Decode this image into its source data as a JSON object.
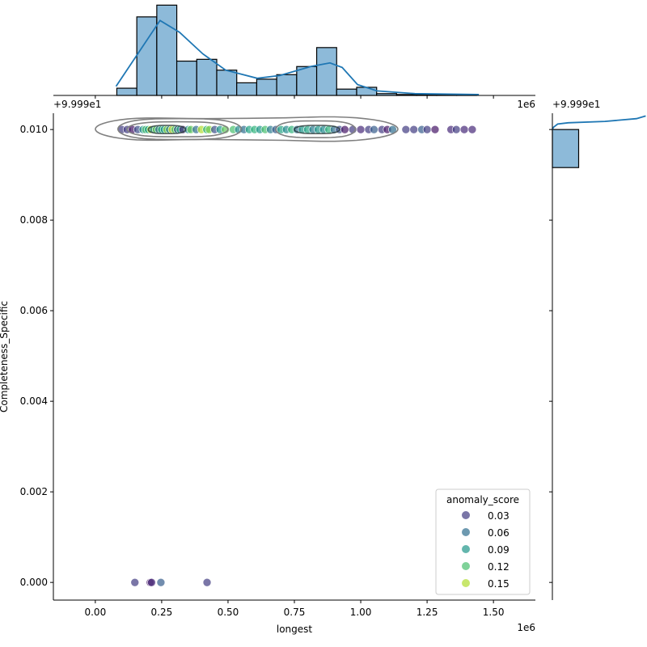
{
  "chart_data": {
    "type": "scatter",
    "subtype": "jointplot with marginal histograms and KDE contours",
    "xlabel": "longest",
    "ylabel": "Completeness_Specific",
    "x_offset_text": "1e6",
    "y_offset_text": "+9.999e1",
    "top_marginal_x_offset_text": "1e6",
    "top_marginal_y_offset_text": "+9.999e1",
    "right_marginal_offset_text": "+9.999e1",
    "xlim": [
      -0.158,
      1.658
    ],
    "ylim": [
      -0.00039,
      0.01036
    ],
    "x_ticks": [
      "0.00",
      "0.25",
      "0.50",
      "0.75",
      "1.00",
      "1.25",
      "1.50"
    ],
    "y_ticks": [
      "0.000",
      "0.002",
      "0.004",
      "0.006",
      "0.008",
      "0.010"
    ],
    "grid": false,
    "legend": {
      "title": "anomaly_score",
      "placement": "lower-right",
      "entries": [
        "0.03",
        "0.06",
        "0.09",
        "0.12",
        "0.15"
      ],
      "values": [
        0.03,
        0.06,
        0.09,
        0.12,
        0.15
      ]
    },
    "colormap": "viridis",
    "hue_range": [
      0.0,
      0.17
    ],
    "points": [
      [
        0.1,
        0.01,
        0.03
      ],
      [
        0.12,
        0.01,
        0.03
      ],
      [
        0.14,
        0.01,
        0.01
      ],
      [
        0.16,
        0.01,
        0.04
      ],
      [
        0.18,
        0.01,
        0.09
      ],
      [
        0.19,
        0.01,
        0.12
      ],
      [
        0.2,
        0.01,
        0.1
      ],
      [
        0.21,
        0.01,
        0.15
      ],
      [
        0.22,
        0.01,
        0.08
      ],
      [
        0.23,
        0.01,
        0.13
      ],
      [
        0.24,
        0.01,
        0.06
      ],
      [
        0.25,
        0.01,
        0.11
      ],
      [
        0.26,
        0.01,
        0.09
      ],
      [
        0.27,
        0.01,
        0.14
      ],
      [
        0.28,
        0.01,
        0.07
      ],
      [
        0.29,
        0.01,
        0.16
      ],
      [
        0.3,
        0.01,
        0.12
      ],
      [
        0.31,
        0.01,
        0.05
      ],
      [
        0.32,
        0.01,
        0.1
      ],
      [
        0.33,
        0.01,
        0.02
      ],
      [
        0.35,
        0.01,
        0.08
      ],
      [
        0.36,
        0.01,
        0.13
      ],
      [
        0.38,
        0.01,
        0.06
      ],
      [
        0.4,
        0.01,
        0.15
      ],
      [
        0.42,
        0.01,
        0.11
      ],
      [
        0.43,
        0.01,
        0.14
      ],
      [
        0.45,
        0.01,
        0.04
      ],
      [
        0.47,
        0.01,
        0.09
      ],
      [
        0.49,
        0.01,
        0.13
      ],
      [
        0.52,
        0.01,
        0.12
      ],
      [
        0.54,
        0.01,
        0.08
      ],
      [
        0.56,
        0.01,
        0.06
      ],
      [
        0.58,
        0.01,
        0.1
      ],
      [
        0.6,
        0.01,
        0.11
      ],
      [
        0.62,
        0.01,
        0.09
      ],
      [
        0.64,
        0.01,
        0.12
      ],
      [
        0.66,
        0.01,
        0.07
      ],
      [
        0.68,
        0.01,
        0.05
      ],
      [
        0.7,
        0.01,
        0.1
      ],
      [
        0.72,
        0.01,
        0.08
      ],
      [
        0.74,
        0.01,
        0.11
      ],
      [
        0.76,
        0.01,
        0.06
      ],
      [
        0.78,
        0.01,
        0.09
      ],
      [
        0.8,
        0.01,
        0.1
      ],
      [
        0.82,
        0.01,
        0.07
      ],
      [
        0.84,
        0.01,
        0.09
      ],
      [
        0.86,
        0.01,
        0.08
      ],
      [
        0.88,
        0.01,
        0.11
      ],
      [
        0.9,
        0.01,
        0.06
      ],
      [
        0.92,
        0.01,
        0.04
      ],
      [
        0.94,
        0.01,
        0.01
      ],
      [
        0.97,
        0.01,
        0.03
      ],
      [
        1.0,
        0.01,
        0.02
      ],
      [
        1.03,
        0.01,
        0.03
      ],
      [
        1.05,
        0.01,
        0.05
      ],
      [
        1.08,
        0.01,
        0.03
      ],
      [
        1.1,
        0.01,
        0.01
      ],
      [
        1.12,
        0.01,
        0.06
      ],
      [
        1.17,
        0.01,
        0.03
      ],
      [
        1.2,
        0.01,
        0.03
      ],
      [
        1.23,
        0.01,
        0.05
      ],
      [
        1.25,
        0.01,
        0.03
      ],
      [
        1.28,
        0.01,
        0.01
      ],
      [
        1.34,
        0.01,
        0.02
      ],
      [
        1.36,
        0.01,
        0.03
      ],
      [
        1.39,
        0.01,
        0.02
      ],
      [
        1.42,
        0.01,
        0.02
      ],
      [
        0.149,
        0.0,
        0.03
      ],
      [
        0.207,
        0.0,
        0.01
      ],
      [
        0.212,
        0.0,
        0.02
      ],
      [
        0.247,
        0.0,
        0.05
      ],
      [
        0.421,
        0.0,
        0.03
      ]
    ],
    "contours": [
      {
        "x": [
          0.0,
          1.14
        ],
        "y": [
          0.0097,
          0.01032
        ],
        "waist": 0.75
      },
      {
        "x": [
          0.085,
          0.55
        ],
        "y": [
          0.00978,
          0.01024
        ],
        "waist": 1
      },
      {
        "x": [
          0.12,
          0.5
        ],
        "y": [
          0.00984,
          0.01017
        ],
        "waist": 1
      },
      {
        "x": [
          0.2,
          0.34
        ],
        "y": [
          0.00991,
          0.01009
        ],
        "waist": 1,
        "dark": true
      },
      {
        "x": [
          0.68,
          0.98
        ],
        "y": [
          0.00982,
          0.01019
        ],
        "waist": 1
      },
      {
        "x": [
          0.75,
          0.92
        ],
        "y": [
          0.00991,
          0.01009
        ],
        "waist": 1,
        "dark": true
      }
    ],
    "contour_color": "#808080",
    "top_histogram": {
      "bin_start": 0.081,
      "bin_width": 0.0753,
      "counts": [
        8,
        87,
        100,
        38,
        40,
        28,
        14,
        18,
        23,
        32,
        53,
        7,
        9,
        2,
        1,
        1,
        1,
        1
      ],
      "ylim": [
        0,
        103
      ],
      "kde": [
        [
          0.078,
          10
        ],
        [
          0.244,
          83
        ],
        [
          0.317,
          70
        ],
        [
          0.405,
          46
        ],
        [
          0.491,
          28
        ],
        [
          0.61,
          19
        ],
        [
          0.695,
          22
        ],
        [
          0.811,
          32
        ],
        [
          0.884,
          36
        ],
        [
          0.93,
          31
        ],
        [
          0.988,
          12
        ],
        [
          1.061,
          5
        ],
        [
          1.204,
          2
        ],
        [
          1.445,
          1
        ]
      ],
      "bar_color": "#8dbad9",
      "line_color": "#1f77b4"
    },
    "right_histogram": {
      "bins": [
        [
          0.00916,
          0.01
        ]
      ],
      "counts": [
        100
      ],
      "xlim": [
        0,
        360
      ],
      "kde": [
        [
          0.0097,
          0
        ],
        [
          0.00975,
          4
        ],
        [
          0.00982,
          20
        ],
        [
          0.00985,
          60
        ],
        [
          0.00988,
          200
        ],
        [
          0.00994,
          320
        ],
        [
          0.01,
          355
        ]
      ],
      "bar_color": "#8dbad9",
      "line_color": "#1f77b4"
    }
  }
}
